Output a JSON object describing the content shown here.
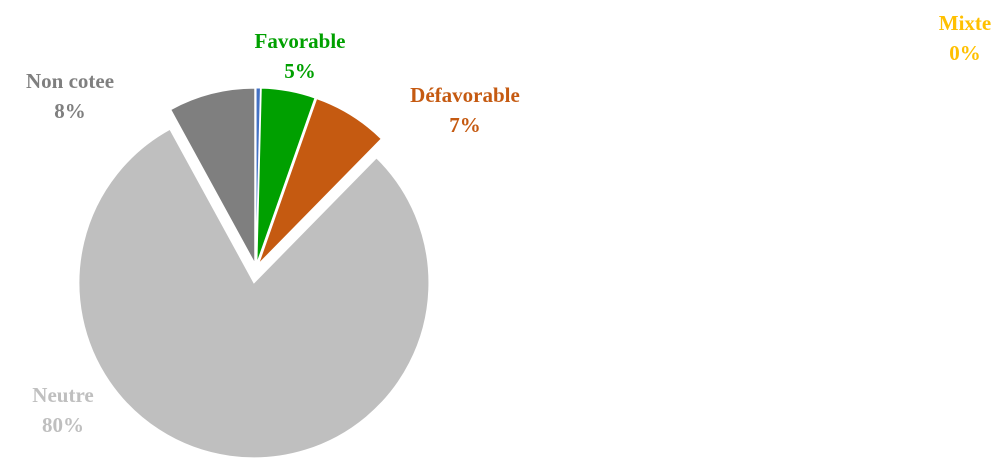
{
  "chart_data": {
    "type": "pie",
    "categories": [
      "Mixte",
      "Favorable",
      "Défavorable",
      "Neutre",
      "Non cotee"
    ],
    "values": [
      0.4,
      5,
      7,
      80,
      8
    ],
    "value_labels": [
      "0%",
      "5%",
      "7%",
      "80%",
      "8%"
    ],
    "colors": [
      "#4472c4",
      "#00a000",
      "#c55a11",
      "#bfbfbf",
      "#7f7f7f"
    ],
    "label_colors": [
      "#ffc000",
      "#00a000",
      "#c55a11",
      "#bfbfbf",
      "#7f7f7f"
    ]
  }
}
